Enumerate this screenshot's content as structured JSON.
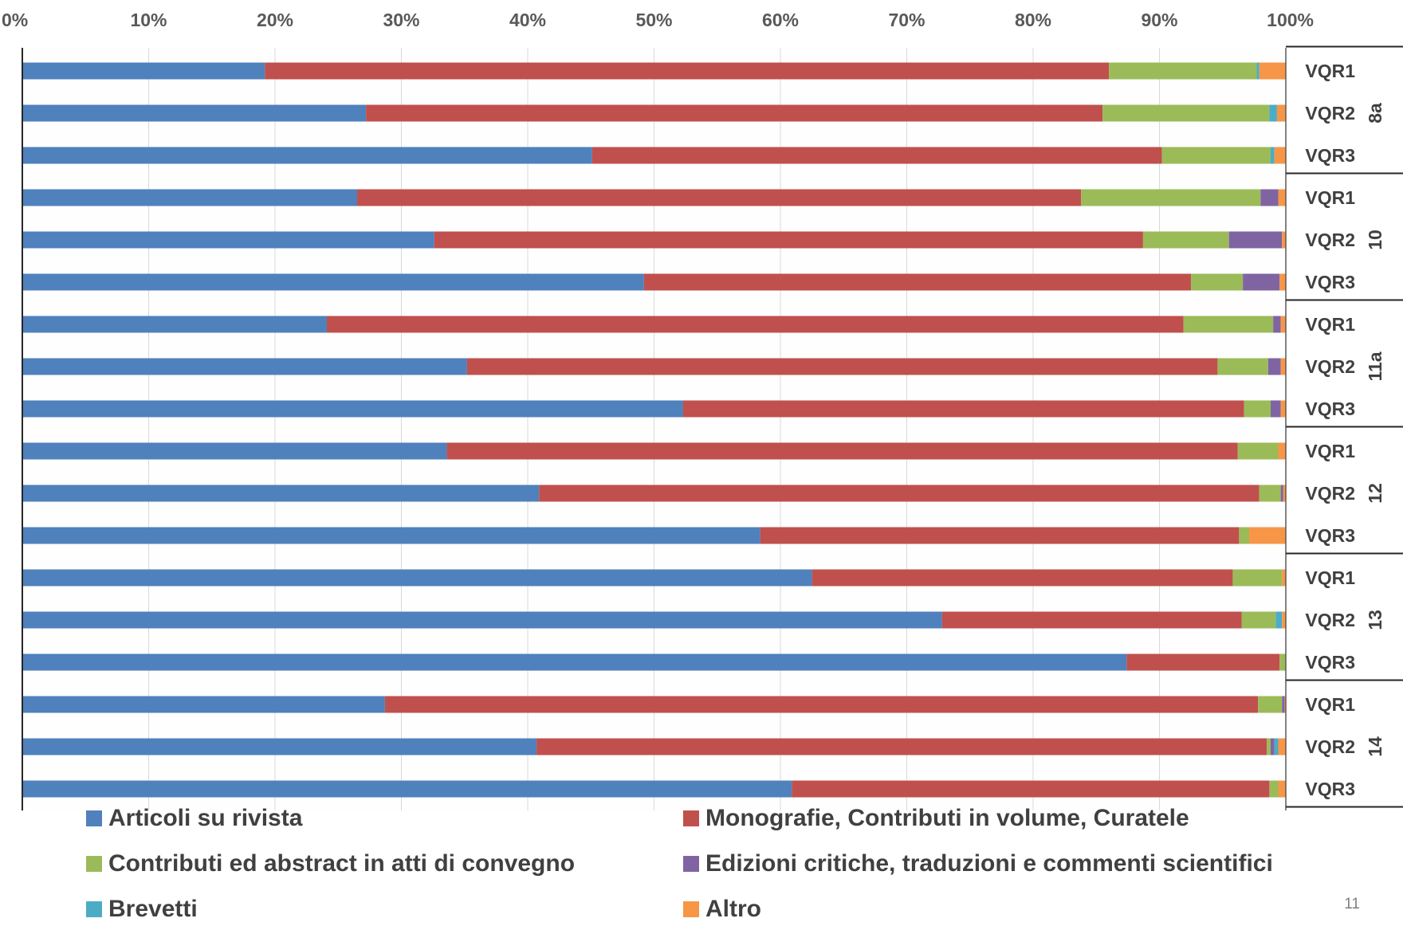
{
  "chart_data": {
    "type": "bar",
    "orientation": "horizontal",
    "stacking": "percent",
    "x_ticks": [
      "0%",
      "10%",
      "20%",
      "30%",
      "40%",
      "50%",
      "60%",
      "70%",
      "80%",
      "90%",
      "100%"
    ],
    "xlim": [
      0,
      100
    ],
    "grid": true,
    "legend_position": "bottom",
    "groups": [
      {
        "label": "8a",
        "rows": [
          "VQR1",
          "VQR2",
          "VQR3"
        ]
      },
      {
        "label": "10",
        "rows": [
          "VQR1",
          "VQR2",
          "VQR3"
        ]
      },
      {
        "label": "11a",
        "rows": [
          "VQR1",
          "VQR2",
          "VQR3"
        ]
      },
      {
        "label": "12",
        "rows": [
          "VQR1",
          "VQR2",
          "VQR3"
        ]
      },
      {
        "label": "13",
        "rows": [
          "VQR1",
          "VQR2",
          "VQR3"
        ]
      },
      {
        "label": "14",
        "rows": [
          "VQR1",
          "VQR2",
          "VQR3"
        ]
      }
    ],
    "series": [
      {
        "name": "Articoli su rivista",
        "color": "#4f81bd",
        "values": [
          19.2,
          27.2,
          45.1,
          26.5,
          32.6,
          49.2,
          24.1,
          35.2,
          52.3,
          33.6,
          40.9,
          58.4,
          62.5,
          72.8,
          87.4,
          28.7,
          40.7,
          60.9
        ]
      },
      {
        "name": "Monografie, Contributi in volume, Curatele",
        "color": "#c0504d",
        "values": [
          66.8,
          58.3,
          45.1,
          57.3,
          56.1,
          43.3,
          67.8,
          59.4,
          44.4,
          62.6,
          57.0,
          37.9,
          33.3,
          23.7,
          12.1,
          69.1,
          57.8,
          37.8
        ]
      },
      {
        "name": "Contributi ed abstract in atti di convegno",
        "color": "#9bbb59",
        "values": [
          11.7,
          13.2,
          8.6,
          14.2,
          6.8,
          4.1,
          7.1,
          4.0,
          2.1,
          3.2,
          1.7,
          0.8,
          3.9,
          2.7,
          0.5,
          1.9,
          0.3,
          0.7
        ]
      },
      {
        "name": "Edizioni critiche, traduzioni e commenti scientifici",
        "color": "#8064a2",
        "values": [
          0.0,
          0.0,
          0.0,
          1.4,
          4.2,
          2.9,
          0.6,
          1.0,
          0.8,
          0.0,
          0.2,
          0.0,
          0.0,
          0.0,
          0.0,
          0.2,
          0.3,
          0.0
        ]
      },
      {
        "name": "Brevetti",
        "color": "#4bacc6",
        "values": [
          0.2,
          0.6,
          0.3,
          0.0,
          0.0,
          0.0,
          0.0,
          0.0,
          0.0,
          0.0,
          0.0,
          0.0,
          0.0,
          0.5,
          0.0,
          0.0,
          0.3,
          0.0
        ]
      },
      {
        "name": "Altro",
        "color": "#f79646",
        "values": [
          2.1,
          0.7,
          0.9,
          0.6,
          0.3,
          0.5,
          0.4,
          0.4,
          0.4,
          0.6,
          0.2,
          2.9,
          0.3,
          0.3,
          0.0,
          0.1,
          0.6,
          0.6
        ]
      }
    ]
  },
  "page_number": "11"
}
